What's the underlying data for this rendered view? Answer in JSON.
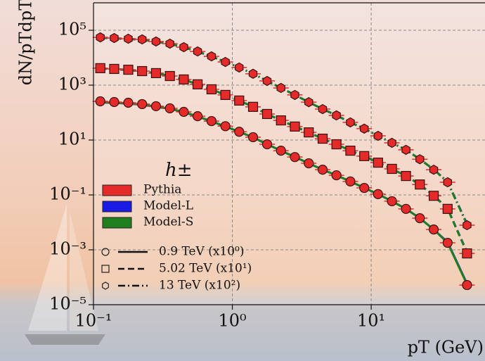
{
  "chart_data": {
    "type": "line",
    "xlabel": "pT (GeV)",
    "ylabel": "dN/pTdpT",
    "log_x": true,
    "log_y": true,
    "grid": true,
    "xlim": [
      0.1,
      66
    ],
    "ylim": [
      1e-05,
      1000000
    ],
    "xticks": [
      {
        "value": 0.1,
        "label": "10⁻¹"
      },
      {
        "value": 1,
        "label": "10⁰"
      },
      {
        "value": 10,
        "label": "10¹"
      }
    ],
    "yticks": [
      {
        "value": 1e-05,
        "label": "10⁻⁵"
      },
      {
        "value": 0.001,
        "label": "10⁻³"
      },
      {
        "value": 0.1,
        "label": "10⁻¹"
      },
      {
        "value": 10,
        "label": "10¹"
      },
      {
        "value": 1000,
        "label": "10³"
      },
      {
        "value": 100000,
        "label": "10⁵"
      }
    ],
    "legend_title": "h±",
    "models": [
      {
        "name": "Pythia",
        "color": "#e52a2a"
      },
      {
        "name": "Model-L",
        "color": "#1b1be6"
      },
      {
        "name": "Model-S",
        "color": "#1f7f1f"
      }
    ],
    "x": [
      0.112,
      0.141,
      0.178,
      0.224,
      0.282,
      0.355,
      0.447,
      0.562,
      0.708,
      0.891,
      1.12,
      1.41,
      1.78,
      2.24,
      2.82,
      3.55,
      4.47,
      5.62,
      7.08,
      8.91,
      11.2,
      14.1,
      17.8,
      22.4,
      28.2,
      35.5,
      49
    ],
    "series": [
      {
        "name": "0.9 TeV (x10⁰)",
        "marker": "circle",
        "dash": "solid",
        "pythia": [
          257,
          243,
          229,
          204,
          171,
          143,
          106,
          74,
          49,
          32,
          20,
          12.7,
          7.0,
          4.1,
          2.4,
          1.42,
          0.83,
          0.52,
          0.31,
          0.18,
          0.107,
          0.059,
          0.031,
          0.0142,
          0.0055,
          0.0018,
          5.2e-05
        ],
        "model_l": [
          235,
          225,
          214,
          193,
          163,
          138,
          103,
          72,
          48,
          31,
          20,
          12.5,
          7.0,
          4.1,
          2.4,
          1.42,
          0.83,
          0.52,
          0.31,
          0.18,
          0.107,
          0.059,
          0.031,
          0.0142,
          0.0055,
          0.0019,
          5.8e-05
        ],
        "model_s": [
          240,
          229,
          217,
          196,
          166,
          140,
          104,
          73,
          48,
          31,
          20,
          12.6,
          7.0,
          4.1,
          2.4,
          1.42,
          0.83,
          0.52,
          0.31,
          0.18,
          0.107,
          0.059,
          0.031,
          0.0142,
          0.0055,
          0.0018,
          5.5e-05
        ]
      },
      {
        "name": "5.02 TeV (x10¹)",
        "marker": "square",
        "dash": "dashed",
        "pythia": [
          4150,
          3900,
          3650,
          3250,
          2740,
          2150,
          1610,
          1070,
          705,
          440,
          275,
          162,
          89,
          52,
          31,
          19,
          11.2,
          7.0,
          4.1,
          2.6,
          1.5,
          0.89,
          0.49,
          0.24,
          0.093,
          0.031,
          0.00074
        ],
        "model_l": [
          4000,
          3800,
          3550,
          3180,
          2700,
          2120,
          1600,
          1065,
          700,
          440,
          275,
          162,
          89,
          52,
          31,
          19,
          11.2,
          7.0,
          4.1,
          2.6,
          1.5,
          0.89,
          0.49,
          0.24,
          0.095,
          0.032,
          0.00082
        ],
        "model_s": [
          4080,
          3850,
          3600,
          3210,
          2720,
          2140,
          1605,
          1068,
          703,
          440,
          275,
          162,
          89,
          52,
          31,
          19,
          11.2,
          7.0,
          4.1,
          2.6,
          1.5,
          0.89,
          0.49,
          0.24,
          0.094,
          0.031,
          0.00078
        ]
      },
      {
        "name": "13 TeV (x10²)",
        "marker": "hexagon",
        "dash": "dashdot",
        "pythia": [
          55000,
          52000,
          49000,
          46500,
          39000,
          32500,
          24200,
          16900,
          11200,
          7000,
          4400,
          2600,
          1420,
          790,
          440,
          240,
          134,
          79,
          44,
          26,
          14.2,
          7.9,
          4.4,
          2.0,
          0.83,
          0.29,
          0.0079
        ],
        "model_l": [
          53000,
          50500,
          48000,
          45000,
          38500,
          32000,
          24000,
          16800,
          11100,
          7000,
          4400,
          2600,
          1420,
          790,
          440,
          240,
          134,
          79,
          44,
          26,
          14.2,
          7.9,
          4.4,
          2.0,
          0.85,
          0.3,
          0.0088
        ],
        "model_s": [
          54000,
          51000,
          48500,
          45800,
          38800,
          32200,
          24100,
          16850,
          11150,
          7000,
          4400,
          2600,
          1420,
          790,
          440,
          240,
          134,
          79,
          44,
          26,
          14.2,
          7.9,
          4.4,
          2.0,
          0.84,
          0.29,
          0.0083
        ]
      }
    ]
  }
}
